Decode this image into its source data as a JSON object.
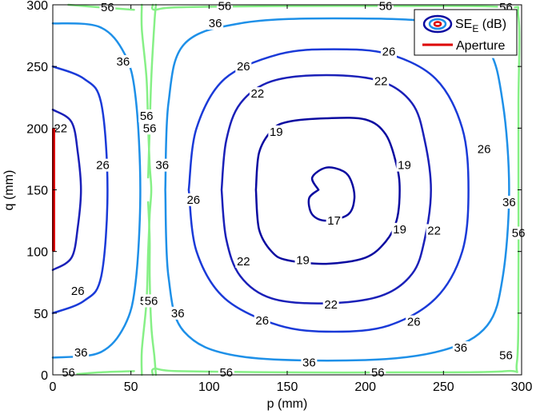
{
  "chart_data": {
    "type": "contour",
    "xlabel": "p (mm)",
    "ylabel": "q (mm)",
    "xlim": [
      0,
      300
    ],
    "ylim": [
      0,
      300
    ],
    "xticks": [
      0,
      50,
      100,
      150,
      200,
      250,
      300
    ],
    "yticks": [
      0,
      50,
      100,
      150,
      200,
      250,
      300
    ],
    "legend": {
      "position": "top-right",
      "entries": [
        {
          "label_main": "SE",
          "label_sub": "E",
          "label_rest": " (dB)",
          "marker": "contour"
        },
        {
          "label": "Aperture",
          "marker": "line",
          "color": "#dd0000"
        }
      ]
    },
    "aperture": {
      "p": 0,
      "q_range": [
        100,
        200
      ],
      "color": "#dd0000"
    },
    "colors": {
      "17": "#0a0aa0",
      "19": "#0a0aa0",
      "22": "#1a20b8",
      "26": "#1a3ad8",
      "36": "#1e90e8",
      "56": "#86f086"
    },
    "contours": [
      {
        "level": 17,
        "points": [
          [
            170,
            150
          ],
          [
            164,
            143
          ],
          [
            166,
            130
          ],
          [
            175,
            125
          ],
          [
            189,
            130
          ],
          [
            193,
            143
          ],
          [
            191,
            157
          ],
          [
            186,
            165
          ],
          [
            175,
            168
          ],
          [
            166,
            160
          ],
          [
            170,
            150
          ]
        ],
        "labels": [
          [
            180,
            125,
            "17"
          ]
        ]
      },
      {
        "level": 19,
        "points": [
          [
            130,
            150
          ],
          [
            132,
            180
          ],
          [
            140,
            198
          ],
          [
            150,
            205
          ],
          [
            175,
            208
          ],
          [
            200,
            207
          ],
          [
            213,
            195
          ],
          [
            220,
            170
          ],
          [
            222,
            150
          ],
          [
            220,
            125
          ],
          [
            213,
            108
          ],
          [
            200,
            95
          ],
          [
            175,
            90
          ],
          [
            150,
            93
          ],
          [
            140,
            100
          ],
          [
            132,
            118
          ],
          [
            130,
            150
          ]
        ],
        "labels": [
          [
            143,
            197,
            "19"
          ],
          [
            225,
            170,
            "19"
          ],
          [
            222,
            118,
            "19"
          ],
          [
            160,
            93,
            "19"
          ]
        ]
      },
      {
        "level": 22,
        "points": [
          [
            108,
            150
          ],
          [
            111,
            190
          ],
          [
            120,
            220
          ],
          [
            140,
            238
          ],
          [
            175,
            243
          ],
          [
            210,
            238
          ],
          [
            230,
            220
          ],
          [
            238,
            190
          ],
          [
            242,
            150
          ],
          [
            238,
            110
          ],
          [
            230,
            82
          ],
          [
            210,
            64
          ],
          [
            175,
            58
          ],
          [
            140,
            62
          ],
          [
            120,
            80
          ],
          [
            111,
            110
          ],
          [
            108,
            150
          ]
        ],
        "labels": [
          [
            131,
            228,
            "22"
          ],
          [
            210,
            238,
            "22"
          ],
          [
            244,
            117,
            "22"
          ],
          [
            122,
            92,
            "22"
          ],
          [
            178,
            57,
            "22"
          ]
        ]
      },
      {
        "level": 26,
        "points": [
          [
            87,
            150
          ],
          [
            92,
            200
          ],
          [
            110,
            240
          ],
          [
            145,
            260
          ],
          [
            180,
            264
          ],
          [
            215,
            260
          ],
          [
            245,
            240
          ],
          [
            262,
            200
          ],
          [
            266,
            150
          ],
          [
            262,
            100
          ],
          [
            245,
            62
          ],
          [
            215,
            40
          ],
          [
            180,
            35
          ],
          [
            145,
            40
          ],
          [
            110,
            62
          ],
          [
            92,
            100
          ],
          [
            87,
            150
          ]
        ],
        "labels": [
          [
            122,
            250,
            "26"
          ],
          [
            215,
            262,
            "26"
          ],
          [
            276,
            183,
            "26"
          ],
          [
            90,
            142,
            "26"
          ],
          [
            134,
            44,
            "26"
          ],
          [
            231,
            43,
            "26"
          ]
        ]
      },
      {
        "level": 36,
        "points": [
          [
            72,
            150
          ],
          [
            74,
            220
          ],
          [
            84,
            268
          ],
          [
            120,
            285
          ],
          [
            180,
            289
          ],
          [
            250,
            285
          ],
          [
            278,
            265
          ],
          [
            288,
            220
          ],
          [
            292,
            150
          ],
          [
            288,
            80
          ],
          [
            278,
            40
          ],
          [
            250,
            20
          ],
          [
            200,
            12
          ],
          [
            120,
            15
          ],
          [
            84,
            35
          ],
          [
            74,
            80
          ],
          [
            72,
            150
          ]
        ],
        "labels": [
          [
            104,
            285,
            "36"
          ],
          [
            282,
            262,
            "36"
          ],
          [
            292,
            140,
            "36"
          ],
          [
            70,
            170,
            "36"
          ],
          [
            80,
            50,
            "36"
          ],
          [
            164,
            10,
            "36"
          ],
          [
            261,
            22,
            "36"
          ]
        ]
      },
      {
        "level": 26,
        "points": [
          [
            0,
            250
          ],
          [
            20,
            240
          ],
          [
            31,
            220
          ],
          [
            35,
            150
          ],
          [
            31,
            80
          ],
          [
            20,
            60
          ],
          [
            0,
            50
          ]
        ],
        "labels": [
          [
            32,
            170,
            "26"
          ],
          [
            16,
            68,
            "26"
          ]
        ]
      },
      {
        "level": 22,
        "points": [
          [
            0,
            215
          ],
          [
            12,
            205
          ],
          [
            16,
            180
          ],
          [
            18,
            150
          ],
          [
            16,
            120
          ],
          [
            12,
            95
          ],
          [
            0,
            85
          ]
        ],
        "labels": [
          [
            5,
            200,
            "22"
          ]
        ]
      },
      {
        "level": 36,
        "points": [
          [
            0,
            285
          ],
          [
            30,
            282
          ],
          [
            46,
            260
          ],
          [
            53,
            225
          ],
          [
            56,
            150
          ],
          [
            53,
            75
          ],
          [
            46,
            40
          ],
          [
            30,
            18
          ],
          [
            0,
            14
          ]
        ],
        "labels": [
          [
            45,
            254,
            "36"
          ],
          [
            18,
            18,
            "36"
          ]
        ]
      },
      {
        "level": 56,
        "points": [
          [
            57,
            300
          ],
          [
            57,
            280
          ],
          [
            60,
            240
          ],
          [
            61,
            200
          ],
          [
            62,
            170
          ],
          [
            63,
            150
          ],
          [
            62,
            130
          ],
          [
            61,
            100
          ],
          [
            60,
            60
          ],
          [
            57,
            20
          ],
          [
            57,
            0
          ]
        ],
        "labels": [
          [
            60,
            210,
            "56"
          ],
          [
            60,
            60,
            "56"
          ]
        ]
      },
      {
        "level": 56,
        "points": [
          [
            66,
            300
          ],
          [
            65,
            285
          ],
          [
            63,
            240
          ],
          [
            62,
            200
          ],
          [
            61,
            160
          ]
        ],
        "labels": [
          [
            62,
            200,
            "56"
          ]
        ]
      },
      {
        "level": 56,
        "points": [
          [
            61,
            140
          ],
          [
            62,
            110
          ],
          [
            62,
            80
          ],
          [
            63,
            40
          ],
          [
            65,
            15
          ],
          [
            66,
            0
          ]
        ],
        "labels": [
          [
            63,
            60,
            "56"
          ]
        ]
      },
      {
        "level": 56,
        "points": [
          [
            64,
            0
          ],
          [
            65,
            5
          ],
          [
            80,
            3
          ],
          [
            150,
            2
          ],
          [
            230,
            2
          ],
          [
            290,
            3
          ],
          [
            297,
            10
          ],
          [
            298,
            80
          ],
          [
            298,
            150
          ],
          [
            298,
            220
          ],
          [
            298,
            290
          ],
          [
            290,
            298
          ],
          [
            230,
            299
          ],
          [
            150,
            299
          ],
          [
            80,
            298
          ],
          [
            65,
            296
          ],
          [
            64,
            300
          ]
        ],
        "labels": [
          [
            110,
            299,
            "56"
          ],
          [
            213,
            299,
            "56"
          ],
          [
            290,
            16,
            "56"
          ],
          [
            298,
            115,
            "56"
          ],
          [
            290,
            298,
            "56"
          ],
          [
            111,
            2,
            "56"
          ],
          [
            208,
            2,
            "56"
          ]
        ]
      },
      {
        "level": 56,
        "points": [
          [
            10,
            300
          ],
          [
            30,
            298
          ],
          [
            52,
            296
          ]
        ],
        "labels": [
          [
            35,
            298,
            "56"
          ]
        ]
      },
      {
        "level": 56,
        "points": [
          [
            10,
            0
          ],
          [
            30,
            2
          ],
          [
            52,
            3
          ]
        ],
        "labels": [
          [
            10,
            2,
            "56"
          ]
        ]
      }
    ]
  }
}
